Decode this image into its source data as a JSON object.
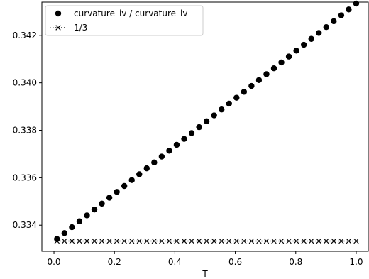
{
  "chart_data": {
    "type": "scatter",
    "xlabel": "T",
    "ylabel": "",
    "xlim": [
      -0.04,
      1.04
    ],
    "ylim": [
      0.3329,
      0.3434
    ],
    "xticks": [
      0.0,
      0.2,
      0.4,
      0.6,
      0.8,
      1.0
    ],
    "xtick_labels": [
      "0.0",
      "0.2",
      "0.4",
      "0.6",
      "0.8",
      "1.0"
    ],
    "yticks": [
      0.334,
      0.336,
      0.338,
      0.34,
      0.342
    ],
    "ytick_labels": [
      "0.334",
      "0.336",
      "0.338",
      "0.340",
      "0.342"
    ],
    "grid": false,
    "legend_position": "top-left",
    "series": [
      {
        "name": "curvature_iv / curvature_lv",
        "marker": "circle",
        "linestyle": "none",
        "color": "#000000",
        "x_start": 0.01,
        "x_end": 1.0,
        "count": 41,
        "y_start": 0.33342,
        "y_end": 0.34334
      },
      {
        "name": "1/3",
        "marker": "x",
        "linestyle": "dotted",
        "color": "#000000",
        "x_start": 0.01,
        "x_end": 1.0,
        "count": 41,
        "y_start": 0.333333,
        "y_end": 0.333333
      }
    ]
  }
}
